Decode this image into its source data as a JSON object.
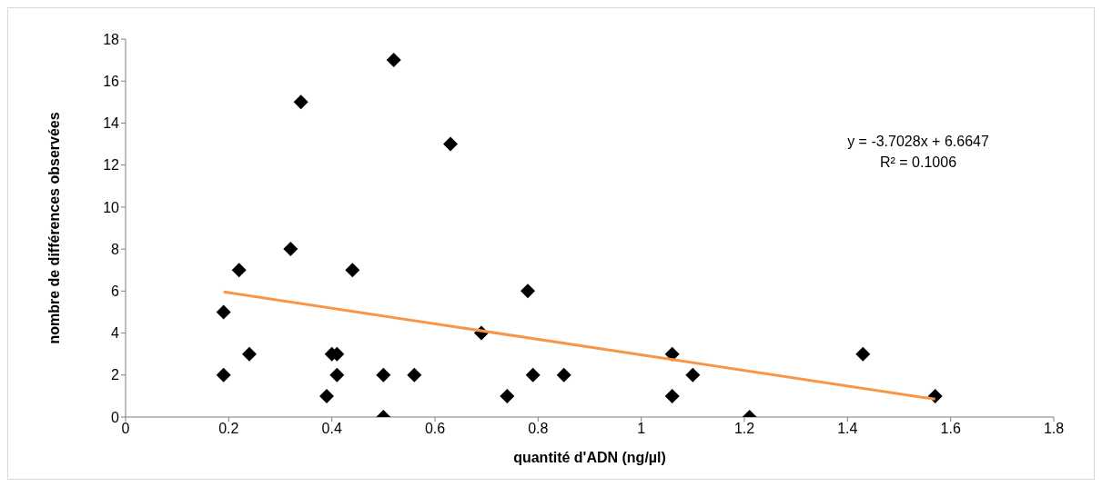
{
  "chart_data": {
    "type": "scatter",
    "xlabel": "quantité d'ADN (ng/µl)",
    "ylabel": "nombre de différences observées",
    "xlim": [
      0,
      1.8
    ],
    "xticks": [
      0,
      0.2,
      0.4,
      0.6,
      0.8,
      1,
      1.2,
      1.4,
      1.6,
      1.8
    ],
    "ylim": [
      0,
      18
    ],
    "yticks": [
      0,
      2,
      4,
      6,
      8,
      10,
      12,
      14,
      16,
      18
    ],
    "grid": false,
    "series": [
      {
        "color": "#000000",
        "marker": "diamond",
        "x": [
          0.19,
          0.19,
          0.22,
          0.24,
          0.32,
          0.34,
          0.39,
          0.4,
          0.41,
          0.41,
          0.44,
          0.5,
          0.5,
          0.52,
          0.56,
          0.63,
          0.69,
          0.74,
          0.78,
          0.79,
          0.85,
          1.06,
          1.06,
          1.1,
          1.21,
          1.43,
          1.57
        ],
        "values": [
          2,
          5,
          7,
          3,
          8,
          15,
          1,
          3,
          3,
          2,
          7,
          2,
          0,
          17,
          2,
          13,
          4,
          1,
          6,
          2,
          2,
          3,
          1,
          2,
          0,
          3,
          1
        ]
      },
      {
        "type": "line",
        "color": "#f79646",
        "marker": "none",
        "x": [
          0.19,
          1.57
        ],
        "values": [
          5.96,
          0.85
        ]
      }
    ],
    "annotations": [
      "y = -3.7028x + 6.6647",
      "R² = 0.1006"
    ]
  }
}
